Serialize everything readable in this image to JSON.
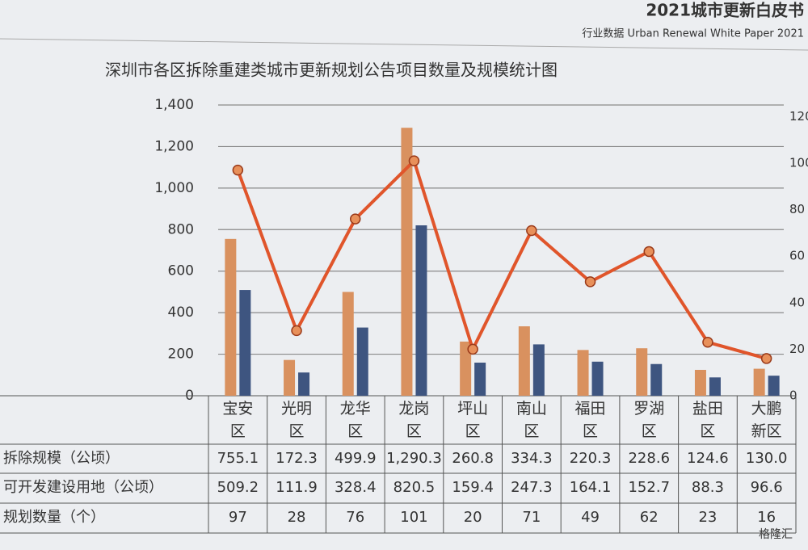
{
  "header": {
    "title": "2021城市更新白皮书",
    "subtitle": "行业数据 Urban Renewal White Paper 2021"
  },
  "watermark": "格隆汇",
  "chart_data": {
    "type": "bar",
    "title": "深圳市各区拆除重建类城市更新规划公告项目数量及规模统计图",
    "categories": [
      "宝安区",
      "光明区",
      "龙华区",
      "龙岗区",
      "坪山区",
      "南山区",
      "福田区",
      "罗湖区",
      "盐田区",
      "大鹏新区"
    ],
    "series": [
      {
        "name": "拆除规模（公顷）",
        "color": "#d9915f",
        "values": [
          755.1,
          172.3,
          499.9,
          1290.3,
          260.8,
          334.3,
          220.3,
          228.6,
          124.6,
          130.0
        ],
        "value_labels": [
          "755.1",
          "172.3",
          "499.9",
          "1,290.3",
          "260.8",
          "334.3",
          "220.3",
          "228.6",
          "124.6",
          "130.0"
        ]
      },
      {
        "name": "可开发建设用地（公顷）",
        "color": "#3e5580",
        "values": [
          509.2,
          111.9,
          328.4,
          820.5,
          159.4,
          247.3,
          164.1,
          152.7,
          88.3,
          96.6
        ],
        "value_labels": [
          "509.2",
          "111.9",
          "328.4",
          "820.5",
          "159.4",
          "247.3",
          "164.1",
          "152.7",
          "88.3",
          "96.6"
        ]
      },
      {
        "name": "规划数量（个）",
        "color": "#e0552b",
        "type": "line",
        "axis": "y2",
        "values": [
          97,
          28,
          76,
          101,
          20,
          71,
          49,
          62,
          23,
          16
        ]
      }
    ],
    "ylim": [
      0,
      1400
    ],
    "yticks": [
      0,
      200,
      400,
      600,
      800,
      {
        "value": 1000,
        "label": "1,000"
      },
      {
        "value": 1200,
        "label": "1,200"
      },
      {
        "value": 1400,
        "label": "1,400"
      }
    ],
    "y2lim": [
      0,
      125
    ],
    "y2ticks": [
      0,
      20,
      40,
      60,
      80,
      100,
      120
    ],
    "grid": true
  }
}
